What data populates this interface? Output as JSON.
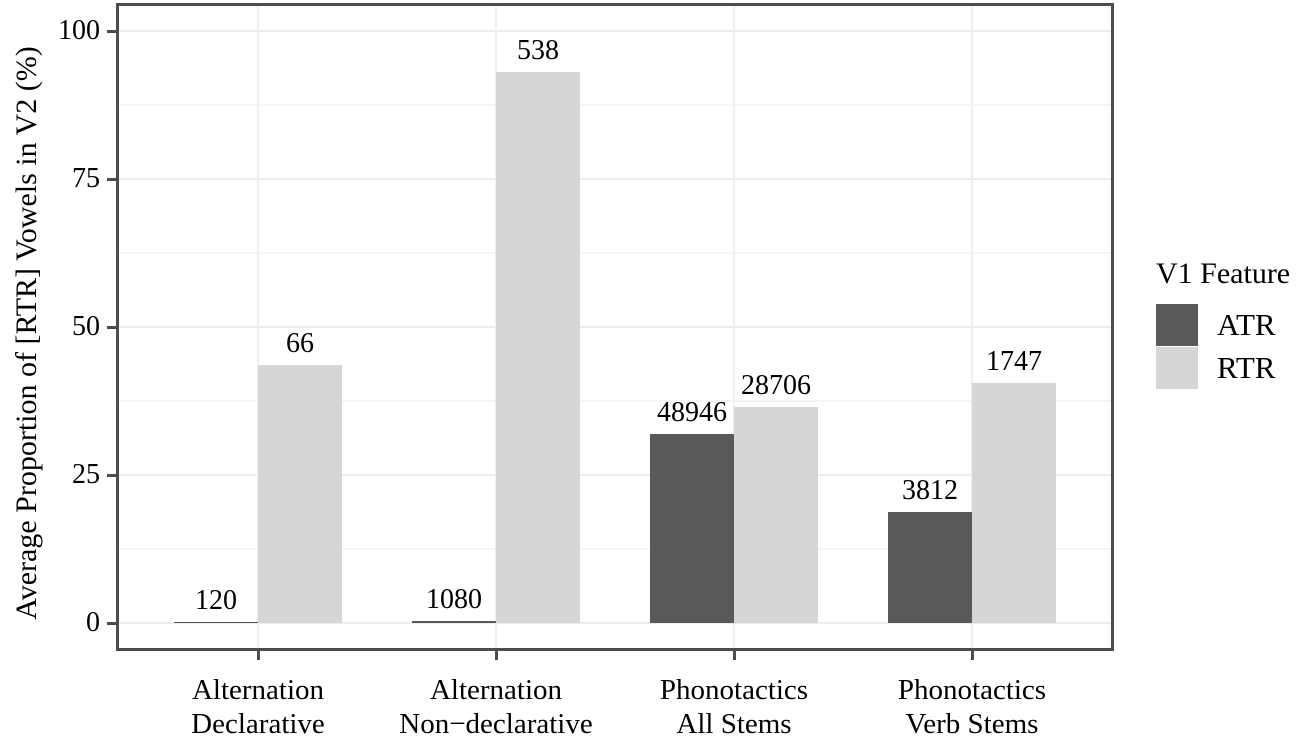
{
  "chart_data": {
    "type": "bar",
    "title": "",
    "xlabel": "",
    "ylabel": "Average Proportion of [RTR] Vowels in V2 (%)",
    "ylim": [
      0,
      100
    ],
    "ytick_labels": [
      "0",
      "25",
      "50",
      "75",
      "100"
    ],
    "ytick_values": [
      0,
      25,
      50,
      75,
      100
    ],
    "minor_grid_values": [
      12.5,
      37.5,
      62.5,
      87.5
    ],
    "grid": true,
    "legend_title": "V1 Feature",
    "legend_position": "right",
    "categories": [
      {
        "line1": "Alternation",
        "line2": "Declarative"
      },
      {
        "line1": "Alternation",
        "line2": "Non−declarative"
      },
      {
        "line1": "Phonotactics",
        "line2": "All Stems"
      },
      {
        "line1": "Phonotactics",
        "line2": "Verb Stems"
      }
    ],
    "series": [
      {
        "name": "ATR",
        "color": "#595959",
        "values": [
          0.1,
          0.4,
          31.9,
          18.8
        ],
        "count_labels": [
          "120",
          "1080",
          "48946",
          "3812"
        ]
      },
      {
        "name": "RTR",
        "color": "#d6d6d6",
        "values": [
          43.6,
          93.1,
          36.5,
          40.5
        ],
        "count_labels": [
          "66",
          "538",
          "28706",
          "1747"
        ]
      }
    ]
  },
  "colors": {
    "panel_border": "#4d4d4d",
    "grid_major": "#ececec",
    "grid_minor": "#f5f5f5",
    "atr_fill": "#595959",
    "rtr_fill": "#d6d6d6",
    "text": "#000000"
  }
}
